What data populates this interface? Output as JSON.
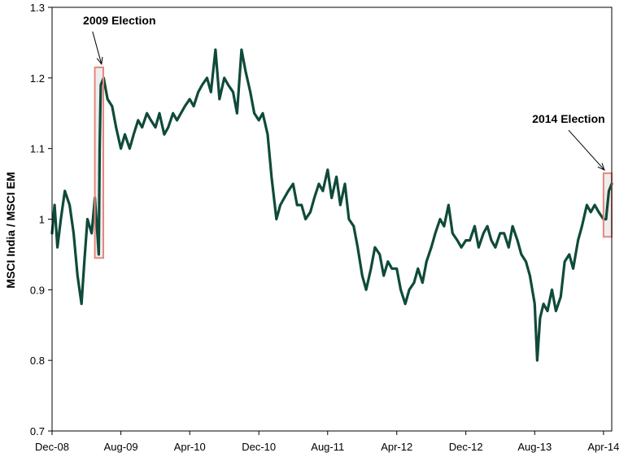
{
  "chart_data": {
    "type": "line",
    "title": "",
    "xlabel": "",
    "ylabel": "MSCI India / MSCI EM",
    "ylim": [
      0.7,
      1.3
    ],
    "yticks": [
      0.7,
      0.8,
      0.9,
      1,
      1.1,
      1.2,
      1.3
    ],
    "ytick_labels": [
      "0.7",
      "0.8",
      "0.9",
      "1",
      "1.1",
      "1.2",
      "1.3"
    ],
    "xlim": [
      "2008-12-01",
      "2014-04-30"
    ],
    "xticks": [
      "2008-12-01",
      "2009-08-01",
      "2010-04-01",
      "2010-12-01",
      "2011-08-01",
      "2012-04-01",
      "2012-12-01",
      "2013-08-01",
      "2014-04-01"
    ],
    "xtick_labels": [
      "Dec-08",
      "Aug-09",
      "Apr-10",
      "Dec-10",
      "Aug-11",
      "Apr-12",
      "Dec-12",
      "Aug-13",
      "Apr-14"
    ],
    "grid": false,
    "legend": "none",
    "line_color": "#0f4a3a",
    "highlight_color": "#e8877e",
    "series": [
      {
        "x": [
          "2008-12-01",
          "2008-12-10",
          "2008-12-20",
          "2009-01-01",
          "2009-01-15",
          "2009-02-01",
          "2009-02-15",
          "2009-03-01",
          "2009-03-15",
          "2009-03-25",
          "2009-04-05",
          "2009-04-20",
          "2009-05-01",
          "2009-05-10",
          "2009-05-15",
          "2009-05-18",
          "2009-05-22",
          "2009-06-01",
          "2009-06-15",
          "2009-07-01",
          "2009-07-15",
          "2009-08-01",
          "2009-08-15",
          "2009-09-01",
          "2009-09-15",
          "2009-10-01",
          "2009-10-15",
          "2009-11-01",
          "2009-11-15",
          "2009-12-01",
          "2009-12-15",
          "2010-01-01",
          "2010-01-15",
          "2010-02-01",
          "2010-02-15",
          "2010-03-01",
          "2010-03-15",
          "2010-04-01",
          "2010-04-15",
          "2010-05-01",
          "2010-05-15",
          "2010-06-01",
          "2010-06-15",
          "2010-07-01",
          "2010-07-15",
          "2010-08-01",
          "2010-08-15",
          "2010-09-01",
          "2010-09-15",
          "2010-10-01",
          "2010-10-15",
          "2010-11-01",
          "2010-11-15",
          "2010-12-01",
          "2010-12-15",
          "2011-01-01",
          "2011-01-15",
          "2011-02-01",
          "2011-02-15",
          "2011-03-01",
          "2011-03-15",
          "2011-04-01",
          "2011-04-15",
          "2011-05-01",
          "2011-05-15",
          "2011-06-01",
          "2011-06-15",
          "2011-07-01",
          "2011-07-15",
          "2011-08-01",
          "2011-08-15",
          "2011-09-01",
          "2011-09-15",
          "2011-10-01",
          "2011-10-15",
          "2011-11-01",
          "2011-11-15",
          "2011-12-01",
          "2011-12-15",
          "2012-01-01",
          "2012-01-15",
          "2012-02-01",
          "2012-02-15",
          "2012-03-01",
          "2012-03-15",
          "2012-04-01",
          "2012-04-15",
          "2012-05-01",
          "2012-05-15",
          "2012-06-01",
          "2012-06-15",
          "2012-07-01",
          "2012-07-15",
          "2012-08-01",
          "2012-08-15",
          "2012-09-01",
          "2012-09-15",
          "2012-10-01",
          "2012-10-15",
          "2012-11-01",
          "2012-11-15",
          "2012-12-01",
          "2012-12-15",
          "2013-01-01",
          "2013-01-15",
          "2013-02-01",
          "2013-02-15",
          "2013-03-01",
          "2013-03-15",
          "2013-04-01",
          "2013-04-15",
          "2013-05-01",
          "2013-05-15",
          "2013-06-01",
          "2013-06-15",
          "2013-07-01",
          "2013-07-15",
          "2013-08-01",
          "2013-08-10",
          "2013-08-20",
          "2013-09-01",
          "2013-09-15",
          "2013-10-01",
          "2013-10-15",
          "2013-11-01",
          "2013-11-15",
          "2013-12-01",
          "2013-12-15",
          "2014-01-01",
          "2014-01-15",
          "2014-02-01",
          "2014-02-15",
          "2014-03-01",
          "2014-03-15",
          "2014-04-01",
          "2014-04-10",
          "2014-04-20",
          "2014-04-30"
        ],
        "values": [
          0.98,
          1.02,
          0.96,
          1.0,
          1.04,
          1.02,
          0.98,
          0.92,
          0.88,
          0.94,
          1.0,
          0.98,
          1.03,
          0.98,
          0.95,
          1.1,
          1.19,
          1.2,
          1.17,
          1.16,
          1.13,
          1.1,
          1.12,
          1.1,
          1.12,
          1.14,
          1.13,
          1.15,
          1.14,
          1.13,
          1.15,
          1.12,
          1.13,
          1.15,
          1.14,
          1.15,
          1.16,
          1.17,
          1.16,
          1.18,
          1.19,
          1.2,
          1.18,
          1.24,
          1.17,
          1.2,
          1.19,
          1.18,
          1.15,
          1.24,
          1.21,
          1.18,
          1.15,
          1.14,
          1.15,
          1.12,
          1.06,
          1.0,
          1.02,
          1.03,
          1.04,
          1.05,
          1.02,
          1.02,
          1.0,
          1.01,
          1.03,
          1.05,
          1.04,
          1.07,
          1.03,
          1.06,
          1.02,
          1.05,
          1.0,
          0.99,
          0.96,
          0.92,
          0.9,
          0.93,
          0.96,
          0.95,
          0.92,
          0.94,
          0.93,
          0.93,
          0.9,
          0.88,
          0.9,
          0.91,
          0.93,
          0.91,
          0.94,
          0.96,
          0.98,
          1.0,
          0.99,
          1.02,
          0.98,
          0.97,
          0.96,
          0.97,
          0.97,
          0.99,
          0.96,
          0.98,
          0.99,
          0.97,
          0.96,
          0.98,
          0.98,
          0.96,
          0.99,
          0.97,
          0.95,
          0.94,
          0.92,
          0.88,
          0.8,
          0.86,
          0.88,
          0.87,
          0.9,
          0.87,
          0.89,
          0.94,
          0.95,
          0.93,
          0.97,
          0.99,
          1.02,
          1.01,
          1.02,
          1.01,
          1.0,
          1.0,
          1.04,
          1.05
        ]
      }
    ],
    "annotations": [
      {
        "label": "2009 Election",
        "x_start": "2009-05-01",
        "x_end": "2009-05-31",
        "y_min": 0.945,
        "y_max": 1.215
      },
      {
        "label": "2014 Election",
        "x_start": "2014-04-01",
        "x_end": "2014-04-30",
        "y_min": 0.975,
        "y_max": 1.065
      }
    ]
  }
}
